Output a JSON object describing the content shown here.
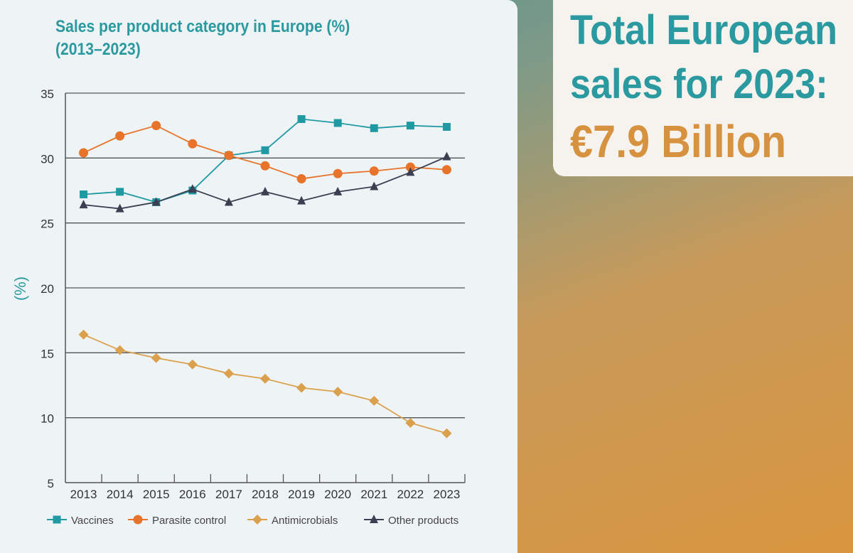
{
  "headline": {
    "line1": "Total European",
    "line2": "sales for 2023:",
    "line3": "€7.9 Billion"
  },
  "chart_data": {
    "type": "line",
    "title": "Sales per product category in Europe (%)",
    "subtitle": "(2013–2023)",
    "xlabel": "",
    "ylabel": "(%)",
    "ylim": [
      5,
      35
    ],
    "yticks": [
      5,
      10,
      15,
      20,
      25,
      30,
      35
    ],
    "grid": true,
    "legend_position": "bottom",
    "x": [
      "2013",
      "2014",
      "2015",
      "2016",
      "2017",
      "2018",
      "2019",
      "2020",
      "2021",
      "2022",
      "2023"
    ],
    "series": [
      {
        "name": "Vaccines",
        "color": "#1f9aa3",
        "marker": "square",
        "values": [
          27.2,
          27.4,
          26.6,
          27.5,
          30.2,
          30.6,
          33.0,
          32.7,
          32.3,
          32.5,
          32.4
        ]
      },
      {
        "name": "Parasite control",
        "color": "#e8732a",
        "marker": "circle",
        "values": [
          30.4,
          31.7,
          32.5,
          31.1,
          30.2,
          29.4,
          28.4,
          28.8,
          29.0,
          29.3,
          29.1
        ]
      },
      {
        "name": "Antimicrobials",
        "color": "#dba04e",
        "marker": "diamond",
        "values": [
          16.4,
          15.2,
          14.6,
          14.1,
          13.4,
          13.0,
          12.3,
          12.0,
          11.3,
          9.6,
          8.8
        ]
      },
      {
        "name": "Other products",
        "color": "#3b3f52",
        "marker": "triangle",
        "values": [
          26.4,
          26.1,
          26.6,
          27.6,
          26.6,
          27.4,
          26.7,
          27.4,
          27.8,
          28.9,
          30.1
        ]
      }
    ]
  }
}
